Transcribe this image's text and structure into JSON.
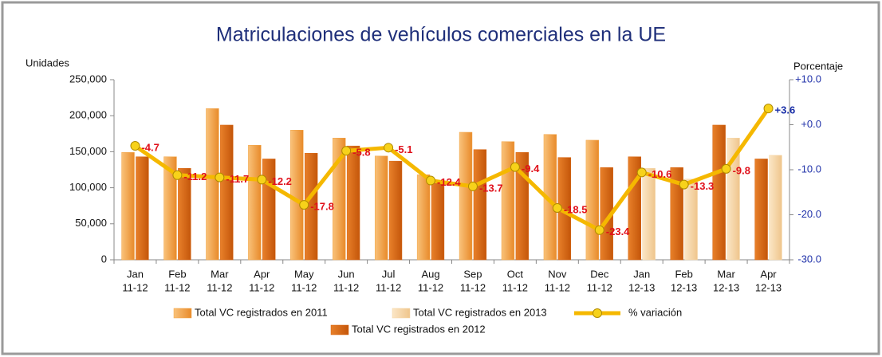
{
  "chart_data": {
    "type": "bar-line",
    "title": "Matriculaciones de vehículos comerciales en la UE",
    "y_label": "Unidades",
    "y2_label": "Porcentaje",
    "categories": [
      [
        "Jan",
        "11-12"
      ],
      [
        "Feb",
        "11-12"
      ],
      [
        "Mar",
        "11-12"
      ],
      [
        "Apr",
        "11-12"
      ],
      [
        "May",
        "11-12"
      ],
      [
        "Jun",
        "11-12"
      ],
      [
        "Jul",
        "11-12"
      ],
      [
        "Aug",
        "11-12"
      ],
      [
        "Sep",
        "11-12"
      ],
      [
        "Oct",
        "11-12"
      ],
      [
        "Nov",
        "11-12"
      ],
      [
        "Dec",
        "11-12"
      ],
      [
        "Jan",
        "12-13"
      ],
      [
        "Feb",
        "12-13"
      ],
      [
        "Mar",
        "12-13"
      ],
      [
        "Apr",
        "12-13"
      ]
    ],
    "series": [
      {
        "name": "Total VC registrados en 2011",
        "color": "#f2a344",
        "values": [
          149000,
          143000,
          210000,
          159000,
          180000,
          169000,
          144000,
          118000,
          177000,
          164000,
          174000,
          166000,
          null,
          null,
          null,
          null
        ]
      },
      {
        "name": "Total VC registrados en 2012",
        "color": "#d8640f",
        "values": [
          143000,
          127000,
          187000,
          140000,
          148000,
          158000,
          137000,
          106000,
          153000,
          149000,
          142000,
          128000,
          143000,
          128000,
          187000,
          140000
        ]
      },
      {
        "name": "Total VC registrados en 2013",
        "color": "#f6d6a4",
        "values": [
          null,
          null,
          null,
          null,
          null,
          null,
          null,
          null,
          null,
          null,
          null,
          null,
          127000,
          112000,
          169000,
          145000
        ]
      },
      {
        "name": "% variación",
        "color": "#f5b800",
        "axis": "y2",
        "values": [
          -4.7,
          -11.2,
          -11.7,
          -12.2,
          -17.8,
          -5.8,
          -5.1,
          -12.4,
          -13.7,
          -9.4,
          -18.5,
          -23.4,
          -10.6,
          -13.3,
          -9.8,
          3.6
        ],
        "value_labels": [
          "-4.7",
          "-11.2",
          "-11.7",
          "-12.2",
          "-17.8",
          "-5.8",
          "-5.1",
          "-12.4",
          "-13.7",
          "-9.4",
          "-18.5",
          "-23.4",
          "-10.6",
          "-13.3",
          "-9.8",
          "+3.6"
        ]
      }
    ],
    "ylim": [
      0,
      250000
    ],
    "yticks": [
      0,
      {
        "value": 50000,
        "label": "50,000"
      },
      {
        "value": 100000,
        "label": "100,000"
      },
      {
        "value": 150000,
        "label": "150,000"
      },
      {
        "value": 200000,
        "label": "200,000"
      },
      {
        "value": 250000,
        "label": "250,000"
      }
    ],
    "y2lim": [
      -30,
      10
    ],
    "y2ticks": [
      {
        "value": -30,
        "label": "-30.0"
      },
      {
        "value": -20,
        "label": "-20.0"
      },
      {
        "value": -10,
        "label": "-10.0"
      },
      {
        "value": 0,
        "label": "+0.0"
      },
      {
        "value": 10,
        "label": "+10.0"
      }
    ],
    "grid": false
  }
}
